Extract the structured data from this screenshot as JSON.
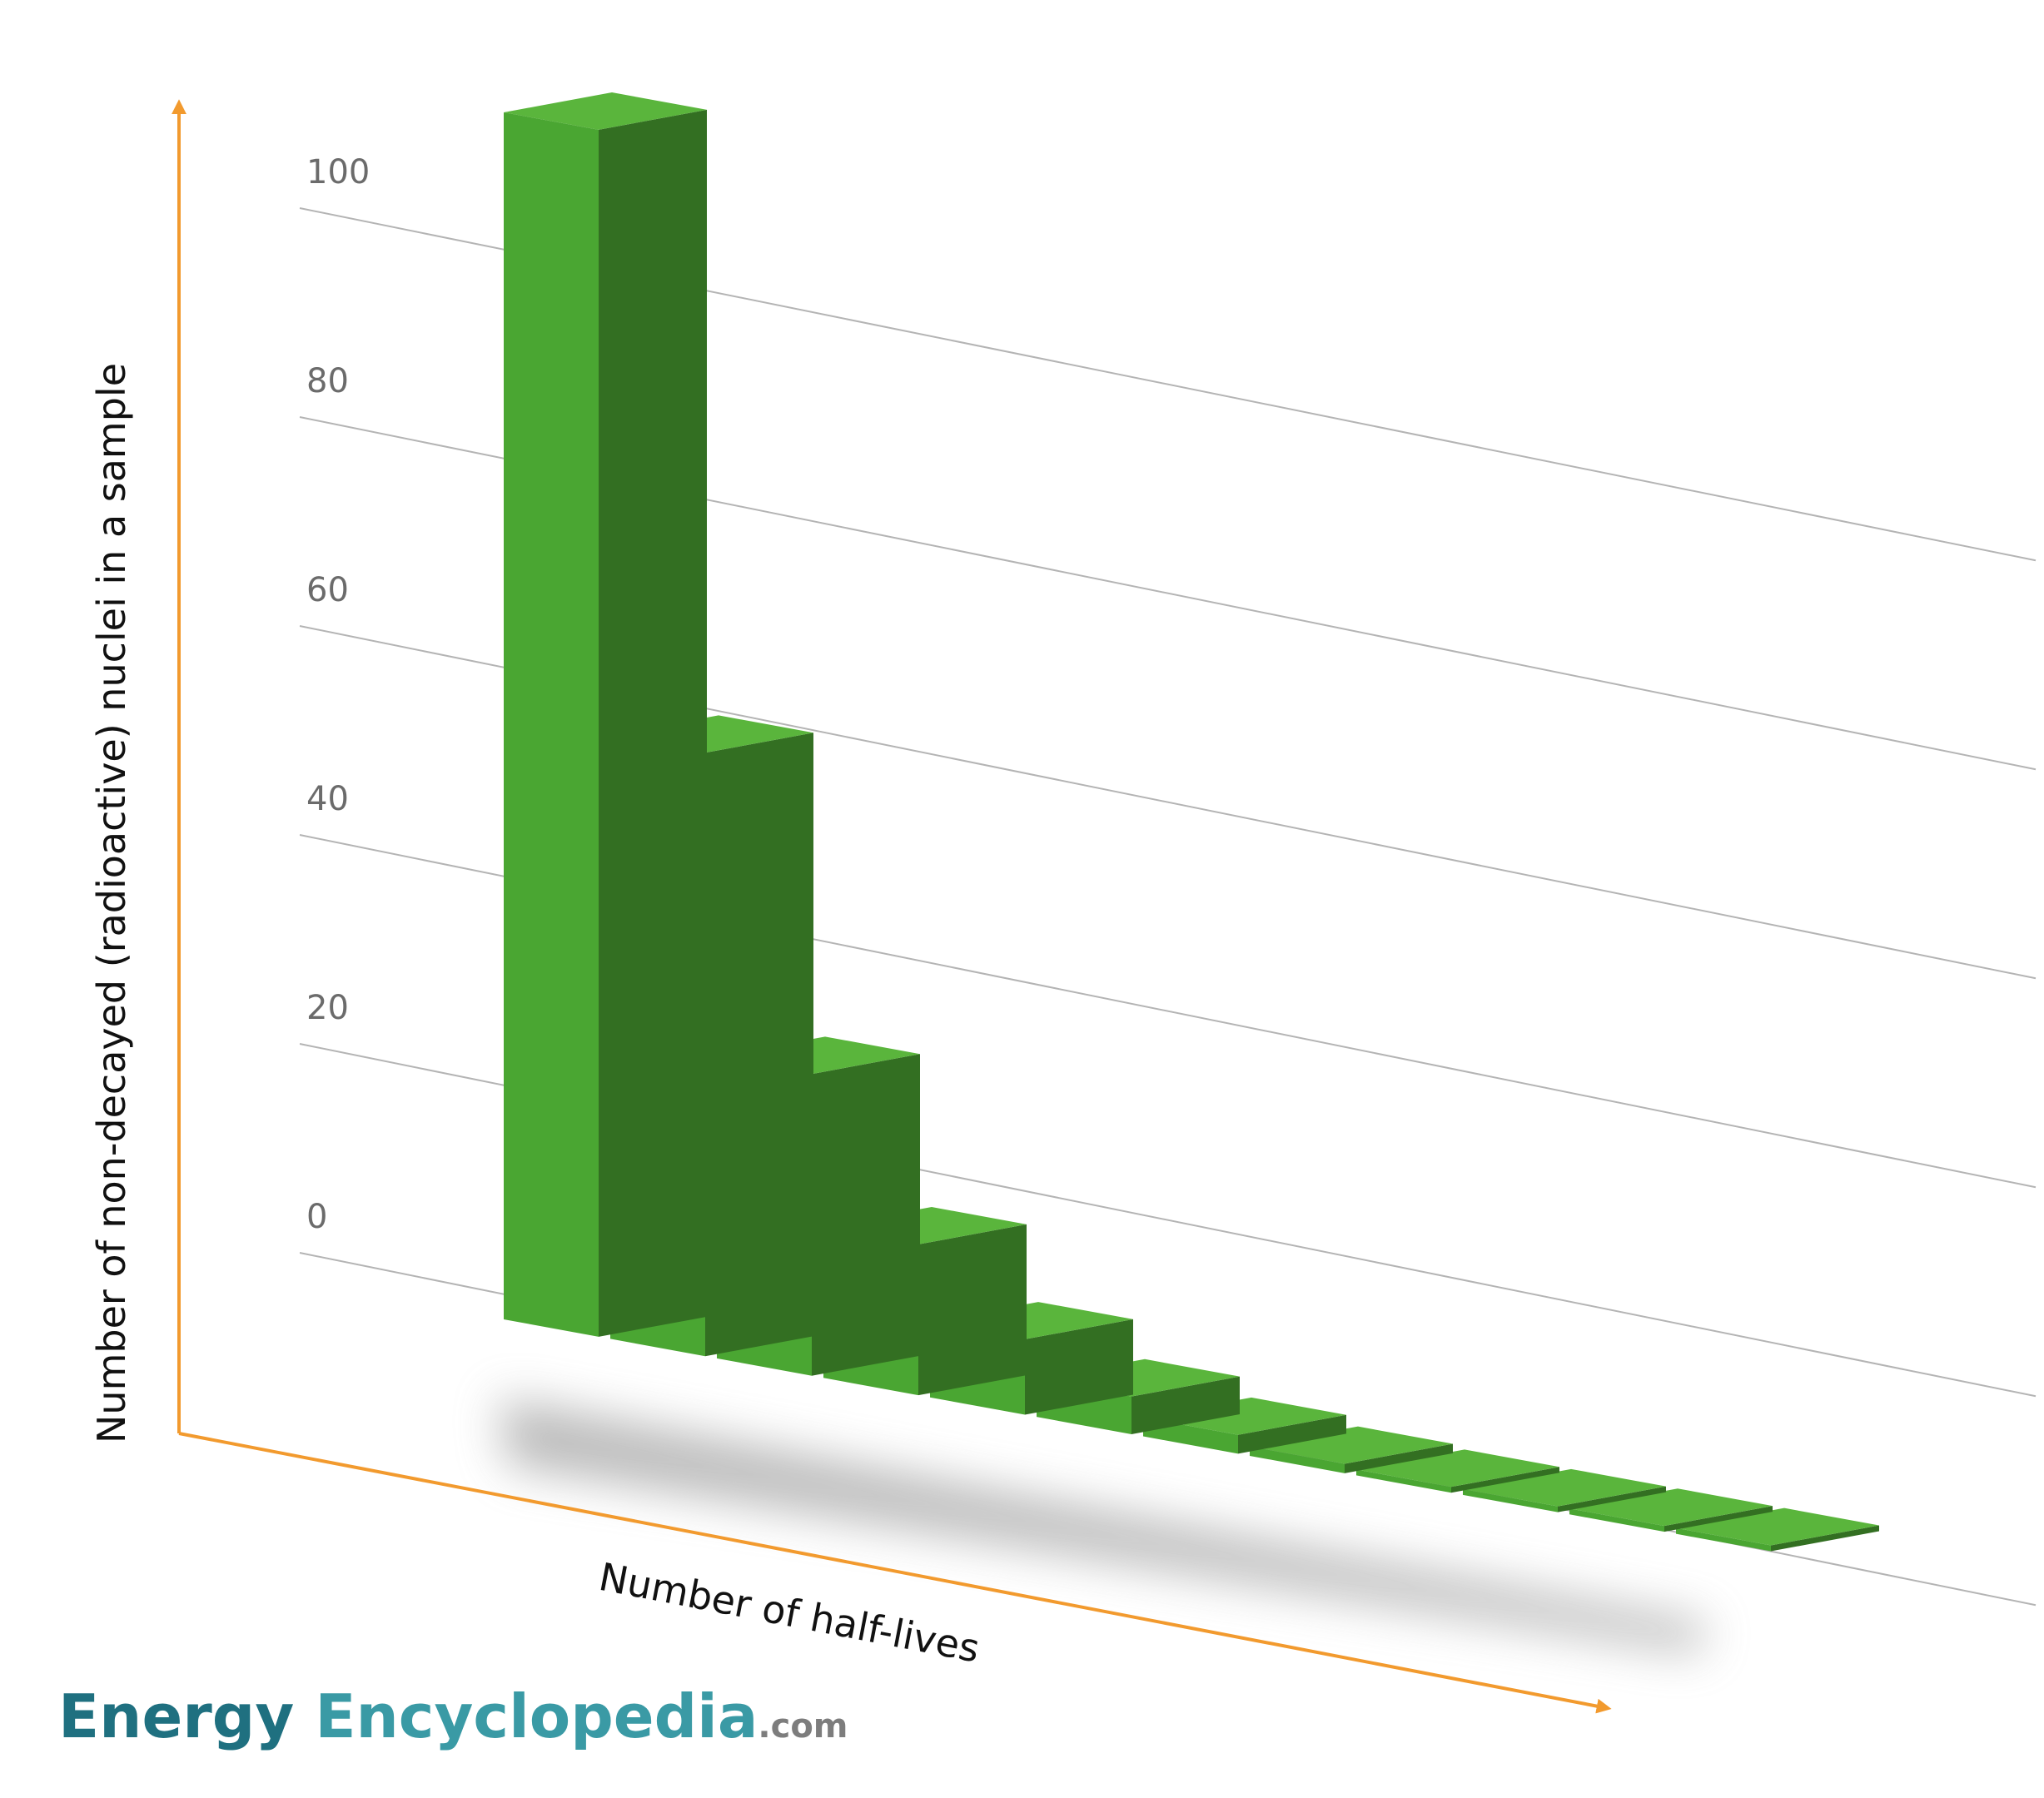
{
  "colors": {
    "axis": "#f29a2e",
    "bar_front": "#4aa632",
    "bar_side": "#336f22",
    "bar_top": "#5ab53c",
    "grid": "#b4b4b4",
    "brand_primary": "#1f7080",
    "brand_secondary": "#3a9aa5",
    "brand_domain": "#7d7d7d"
  },
  "chart_data": {
    "type": "bar",
    "style": "3d",
    "xlabel": "Number of half-lives",
    "ylabel": "Number of non-decayed (radioactive) nuclei in a sample",
    "categories": [
      "",
      "",
      "",
      "",
      "",
      "",
      "",
      "",
      "",
      "",
      "",
      ""
    ],
    "values": [
      100,
      50,
      25,
      12.5,
      6.25,
      3.125,
      1.5625,
      0.78,
      0.39,
      0.2,
      0.1,
      0.05
    ],
    "yticks": [
      "0",
      "20",
      "40",
      "60",
      "80",
      "100"
    ],
    "ylim": [
      0,
      100
    ],
    "grid": true,
    "legend": "none"
  },
  "brand": {
    "word1": "Energy",
    "word2": "Encyclopedia",
    "domain": ".com"
  }
}
